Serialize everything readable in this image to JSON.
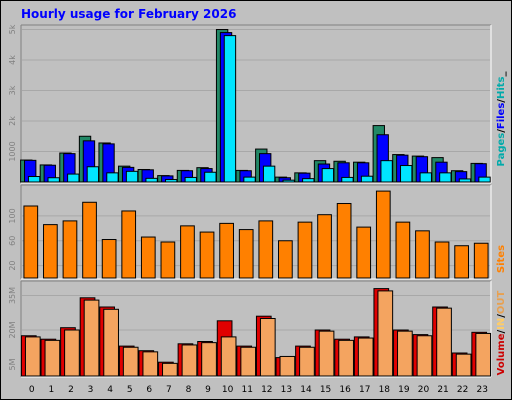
{
  "title": "Hourly usage for February 2026",
  "hours": [
    "0",
    "1",
    "2",
    "3",
    "4",
    "5",
    "6",
    "7",
    "8",
    "9",
    "10",
    "11",
    "12",
    "13",
    "14",
    "15",
    "16",
    "17",
    "18",
    "19",
    "20",
    "21",
    "22",
    "23"
  ],
  "legends": {
    "top": {
      "parts": [
        {
          "text": "Pages",
          "color": "#00aaaa"
        },
        {
          "text": "/",
          "color": "#000000"
        },
        {
          "text": "Files",
          "color": "#0000ff"
        },
        {
          "text": "/",
          "color": "#000000"
        },
        {
          "text": "Hits",
          "color": "#00aaaa"
        },
        {
          "text": "_",
          "color": "#000000"
        }
      ]
    },
    "mid": {
      "parts": [
        {
          "text": "Sites",
          "color": "#ff8000"
        }
      ]
    },
    "bottom": {
      "parts": [
        {
          "text": "Volume",
          "color": "#cc0000"
        },
        {
          "text": "/",
          "color": "#000000"
        },
        {
          "text": "IN",
          "color": "#ffcc66"
        },
        {
          "text": "/",
          "color": "#000000"
        },
        {
          "text": "OUT",
          "color": "#e8a050"
        }
      ]
    }
  },
  "colors": {
    "hits": "#228866",
    "files": "#0000ff",
    "pages": "#00e5ff",
    "sites": "#ff8000",
    "volume": "#e00000",
    "out": "#f4a460"
  },
  "chart_data": [
    {
      "type": "bar",
      "title": "Hits / Files / Pages",
      "categories": [
        "0",
        "1",
        "2",
        "3",
        "4",
        "5",
        "6",
        "7",
        "8",
        "9",
        "10",
        "11",
        "12",
        "13",
        "14",
        "15",
        "16",
        "17",
        "18",
        "19",
        "20",
        "21",
        "22",
        "23"
      ],
      "yticks": [
        "1000",
        "2k",
        "3k",
        "4k",
        "5k"
      ],
      "ylim": [
        0,
        5050
      ],
      "series": [
        {
          "name": "Hits",
          "values": [
            720,
            560,
            950,
            1500,
            1280,
            520,
            410,
            210,
            380,
            470,
            5000,
            380,
            1080,
            160,
            300,
            700,
            680,
            650,
            1850,
            900,
            850,
            800,
            370,
            610
          ]
        },
        {
          "name": "Files",
          "values": [
            710,
            550,
            930,
            1350,
            1250,
            480,
            400,
            200,
            370,
            440,
            4900,
            370,
            930,
            140,
            290,
            590,
            630,
            630,
            1550,
            880,
            830,
            650,
            340,
            600
          ]
        },
        {
          "name": "Pages",
          "values": [
            180,
            140,
            260,
            500,
            300,
            350,
            120,
            80,
            150,
            320,
            4800,
            160,
            520,
            60,
            110,
            440,
            150,
            190,
            700,
            540,
            300,
            300,
            100,
            160
          ]
        }
      ]
    },
    {
      "type": "bar",
      "title": "Sites",
      "categories": [
        "0",
        "1",
        "2",
        "3",
        "4",
        "5",
        "6",
        "7",
        "8",
        "9",
        "10",
        "11",
        "12",
        "13",
        "14",
        "15",
        "16",
        "17",
        "18",
        "19",
        "20",
        "21",
        "22",
        "23"
      ],
      "yticks": [
        "20",
        "60",
        "100"
      ],
      "ylim": [
        0,
        145
      ],
      "series": [
        {
          "name": "Sites",
          "values": [
            116,
            86,
            92,
            122,
            62,
            108,
            66,
            58,
            84,
            74,
            88,
            78,
            92,
            60,
            90,
            102,
            120,
            82,
            140,
            90,
            76,
            58,
            52,
            56
          ]
        }
      ]
    },
    {
      "type": "bar",
      "title": "Volume / IN / OUT",
      "categories": [
        "0",
        "1",
        "2",
        "3",
        "4",
        "5",
        "6",
        "7",
        "8",
        "9",
        "10",
        "11",
        "12",
        "13",
        "14",
        "15",
        "16",
        "17",
        "18",
        "19",
        "20",
        "21",
        "22",
        "23"
      ],
      "yticks": [
        "5M",
        "20M",
        "35M"
      ],
      "ylim": [
        0,
        40
      ],
      "series": [
        {
          "name": "Volume",
          "values": [
            17.5,
            16,
            21,
            34,
            30,
            13,
            11,
            6,
            14,
            15,
            24,
            13,
            26,
            8,
            13,
            20,
            16,
            17,
            38,
            20,
            18,
            30,
            10,
            19
          ]
        },
        {
          "name": "OUT",
          "values": [
            17,
            15.5,
            20,
            33,
            29,
            12.5,
            10.5,
            5.5,
            13.5,
            14.5,
            17,
            12.5,
            25,
            8.5,
            12.5,
            19.5,
            15.5,
            16.5,
            37,
            19.5,
            17.5,
            29.5,
            9.5,
            18.5
          ]
        }
      ]
    }
  ]
}
